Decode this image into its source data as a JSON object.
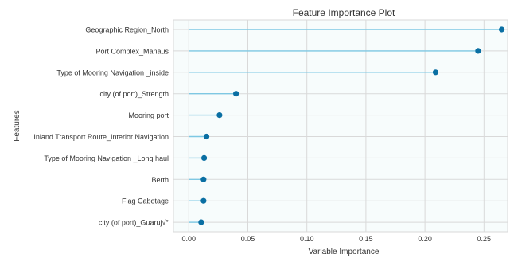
{
  "chart_data": {
    "type": "lollipop",
    "title": "Feature Importance Plot",
    "xlabel": "Variable Importance",
    "ylabel": "Features",
    "xlim": [
      -0.013,
      0.27
    ],
    "xticks": [
      0.0,
      0.05,
      0.1,
      0.15,
      0.2,
      0.25
    ],
    "xtick_labels": [
      "0.00",
      "0.05",
      "0.10",
      "0.15",
      "0.20",
      "0.25"
    ],
    "grid": true,
    "categories": [
      "Geographic Region_North",
      "Port Complex_Manaus",
      "Type of Mooring Navigation _inside",
      "city (of port)_Strength",
      "Mooring port",
      "Inland Transport Route_Interior Navigation",
      "Type of Mooring Navigation _Long haul",
      "Berth",
      "Flag Cabotage",
      "city (of port)_Guaruj√°"
    ],
    "values": [
      0.265,
      0.245,
      0.209,
      0.04,
      0.026,
      0.015,
      0.013,
      0.0125,
      0.0125,
      0.0105
    ],
    "colors": {
      "stem": "#7ec8e3",
      "dot": "#0a6fa3",
      "plot_background": "#f7fcfc",
      "grid": "#d9d9d9",
      "text": "#333333"
    }
  }
}
